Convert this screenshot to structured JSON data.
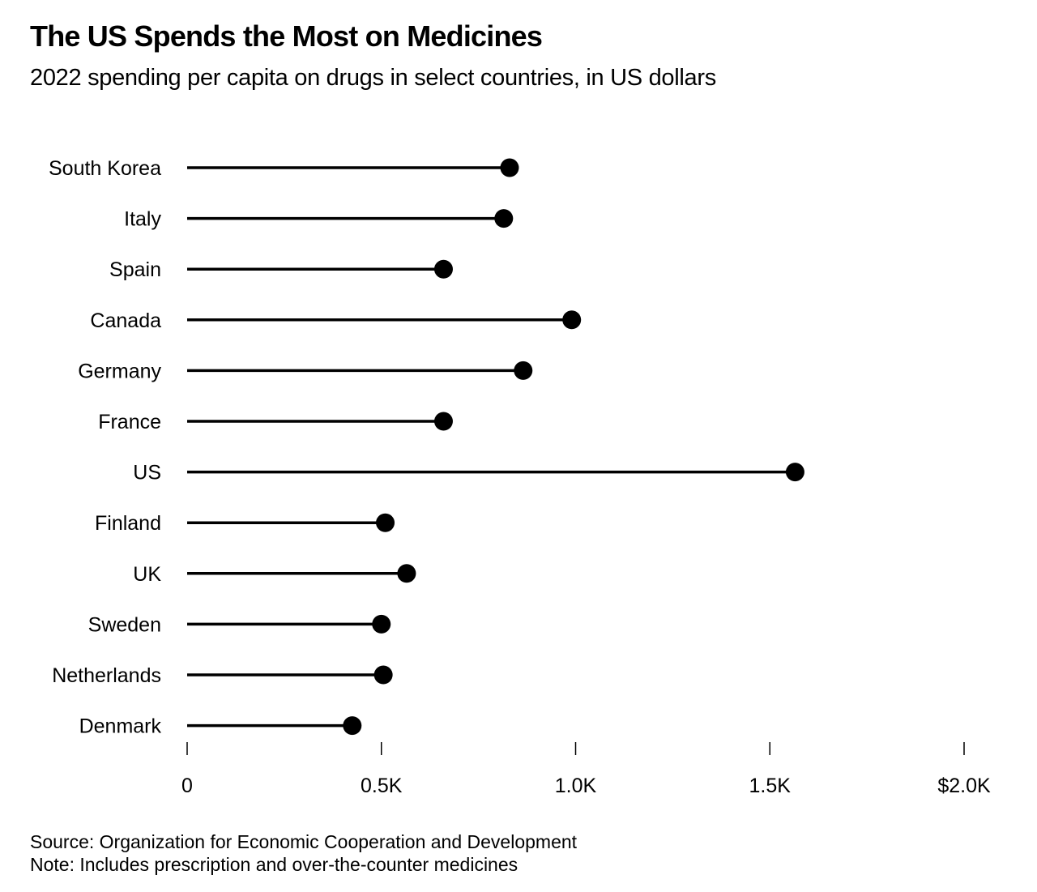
{
  "chart_data": {
    "type": "lollipop",
    "title": "The US Spends the Most on Medicines",
    "subtitle": "2022 spending per capita on drugs in select countries, in US dollars",
    "xlabel": "",
    "ylabel": "",
    "categories": [
      "South Korea",
      "Italy",
      "Spain",
      "Canada",
      "Germany",
      "France",
      "US",
      "Finland",
      "UK",
      "Sweden",
      "Netherlands",
      "Denmark"
    ],
    "values": [
      830,
      815,
      660,
      990,
      865,
      660,
      1565,
      510,
      565,
      500,
      505,
      425
    ],
    "unit": "US dollars per capita",
    "xlim": [
      0,
      2000
    ],
    "xticks": [
      0,
      500,
      1000,
      1500,
      2000
    ],
    "xtick_labels": [
      "0",
      "0.5K",
      "1.0K",
      "1.5K",
      "$2.0K"
    ],
    "grid": false,
    "legend": "none",
    "color": "#000000"
  },
  "footer": {
    "source": "Source: Organization for Economic Cooperation and Development",
    "note": "Note: Includes prescription and over-the-counter medicines"
  }
}
